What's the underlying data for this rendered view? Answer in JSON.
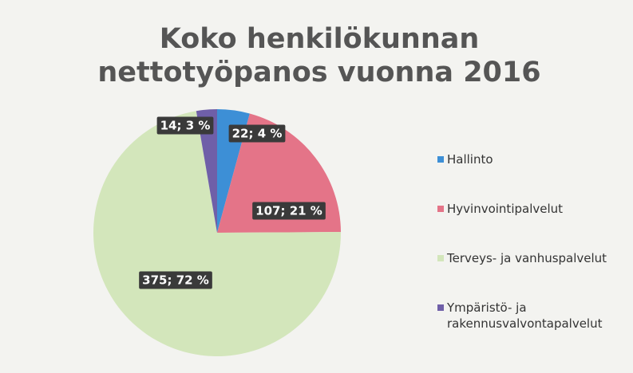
{
  "chart_data": {
    "type": "pie",
    "title": "Koko henkilökunnan nettotyöpanos vuonna 2016",
    "categories": [
      "Hallinto",
      "Hyvinvointipalvelut",
      "Terveys- ja vanhuspalvelut",
      "Ympäristö- ja rakennusvalvontapalvelut"
    ],
    "values": [
      22,
      107,
      375,
      14
    ],
    "value_labels": [
      "22; 4 %",
      "107; 21 %",
      "375; 72 %",
      "14; 3 %"
    ],
    "colors": [
      "#3d8fd6",
      "#e47488",
      "#d3e6bb",
      "#6f5fa8"
    ],
    "legend": "right"
  }
}
